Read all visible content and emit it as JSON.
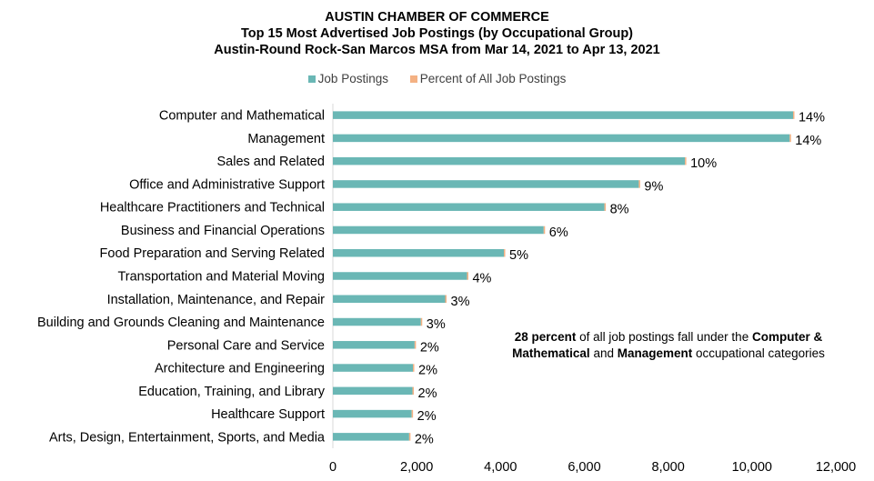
{
  "chart_data": {
    "type": "bar",
    "orientation": "horizontal",
    "title": [
      "AUSTIN CHAMBER OF COMMERCE",
      "Top 15 Most Advertised Job Postings (by Occupational Group)",
      "Austin-Round Rock-San Marcos MSA from Mar 14, 2021 to Apr 13, 2021"
    ],
    "legend": [
      {
        "name": "Job Postings",
        "color": "#6ab7b5"
      },
      {
        "name": "Percent of All Job Postings",
        "color": "#f4b183"
      }
    ],
    "legend_position": "top",
    "categories": [
      "Computer and Mathematical",
      "Management",
      "Sales and Related",
      "Office and Administrative Support",
      "Healthcare Practitioners and Technical",
      "Business and Financial Operations",
      "Food Preparation and Serving Related",
      "Transportation and Material Moving",
      "Installation, Maintenance, and Repair",
      "Building and Grounds Cleaning and Maintenance",
      "Personal Care and Service",
      "Architecture and Engineering",
      "Education, Training, and Library",
      "Healthcare Support",
      "Arts, Design, Entertainment, Sports, and Media"
    ],
    "series": [
      {
        "name": "Job Postings",
        "values": [
          10980,
          10900,
          8400,
          7300,
          6480,
          5030,
          4080,
          3200,
          2680,
          2100,
          1950,
          1910,
          1900,
          1880,
          1820
        ]
      },
      {
        "name": "Percent of All Job Postings",
        "values": [
          14,
          14,
          10,
          9,
          8,
          6,
          5,
          4,
          3,
          3,
          2,
          2,
          2,
          2,
          2
        ]
      }
    ],
    "data_labels": [
      "14%",
      "14%",
      "10%",
      "9%",
      "8%",
      "6%",
      "5%",
      "4%",
      "3%",
      "3%",
      "2%",
      "2%",
      "2%",
      "2%",
      "2%"
    ],
    "xlim": [
      0,
      12000
    ],
    "xticks": [
      0,
      2000,
      4000,
      6000,
      8000,
      10000,
      12000
    ],
    "xtick_labels": [
      "0",
      "2,000",
      "4,000",
      "6,000",
      "8,000",
      "10,000",
      "12,000"
    ],
    "grid": false,
    "annotation": {
      "bold1": "28 percent",
      "text1": " of all job postings fall under the ",
      "bold2": "Computer &",
      "bold3": "Mathematical",
      "text2": " and ",
      "bold4": "Management",
      "text3": " occupational categories"
    }
  }
}
